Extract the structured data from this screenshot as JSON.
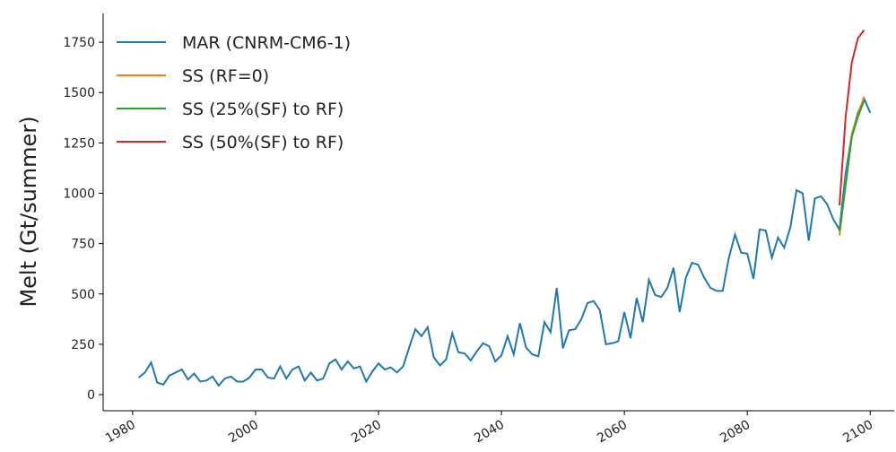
{
  "chart_data": {
    "type": "line",
    "ylabel": "Melt (Gt/summer)",
    "xlim": [
      1975.2,
      2103.9
    ],
    "ylim": [
      -80,
      1893
    ],
    "xticks": [
      1980,
      2000,
      2020,
      2040,
      2060,
      2080,
      2100
    ],
    "yticks": [
      0,
      250,
      500,
      750,
      1000,
      1250,
      1500,
      1750
    ],
    "legend": "upper left",
    "series": [
      {
        "name": "MAR (CNRM-CM6-1)",
        "color": "#1f77b4",
        "x": [
          1981,
          1982,
          1983,
          1984,
          1985,
          1986,
          1987,
          1988,
          1989,
          1990,
          1991,
          1992,
          1993,
          1994,
          1995,
          1996,
          1997,
          1998,
          1999,
          2000,
          2001,
          2002,
          2003,
          2004,
          2005,
          2006,
          2007,
          2008,
          2009,
          2010,
          2011,
          2012,
          2013,
          2014,
          2015,
          2016,
          2017,
          2018,
          2019,
          2020,
          2021,
          2022,
          2023,
          2024,
          2025,
          2026,
          2027,
          2028,
          2029,
          2030,
          2031,
          2032,
          2033,
          2034,
          2035,
          2036,
          2037,
          2038,
          2039,
          2040,
          2041,
          2042,
          2043,
          2044,
          2045,
          2046,
          2047,
          2048,
          2049,
          2050,
          2051,
          2052,
          2053,
          2054,
          2055,
          2056,
          2057,
          2058,
          2059,
          2060,
          2061,
          2062,
          2063,
          2064,
          2065,
          2066,
          2067,
          2068,
          2069,
          2070,
          2071,
          2072,
          2073,
          2074,
          2075,
          2076,
          2077,
          2078,
          2079,
          2080,
          2081,
          2082,
          2083,
          2084,
          2085,
          2086,
          2087,
          2088,
          2089,
          2090,
          2091,
          2092,
          2093,
          2094,
          2095,
          2096,
          2097,
          2098,
          2099,
          2100
        ],
        "values": [
          85,
          110,
          160,
          60,
          50,
          95,
          110,
          125,
          75,
          105,
          65,
          70,
          90,
          45,
          80,
          90,
          65,
          65,
          85,
          125,
          125,
          85,
          80,
          140,
          80,
          125,
          140,
          70,
          110,
          70,
          80,
          155,
          175,
          125,
          165,
          130,
          140,
          65,
          115,
          155,
          125,
          135,
          110,
          140,
          235,
          325,
          290,
          335,
          185,
          145,
          175,
          305,
          210,
          205,
          170,
          215,
          255,
          240,
          165,
          195,
          290,
          200,
          355,
          235,
          200,
          190,
          360,
          310,
          530,
          230,
          320,
          325,
          375,
          455,
          465,
          420,
          250,
          255,
          265,
          410,
          280,
          480,
          360,
          570,
          495,
          485,
          530,
          630,
          410,
          580,
          655,
          645,
          580,
          530,
          515,
          515,
          680,
          795,
          705,
          700,
          575,
          820,
          815,
          680,
          780,
          730,
          830,
          1015,
          1000,
          765,
          975,
          985,
          945,
          870,
          820,
          1100,
          1290,
          1400,
          1470,
          1400
        ]
      },
      {
        "name": "SS (RF=0)",
        "color": "#ff7f0e",
        "x": [
          2095,
          2096,
          2097,
          2098,
          2099
        ],
        "values": [
          790,
          1050,
          1290,
          1390,
          1480
        ]
      },
      {
        "name": "SS (25%(SF) to RF)",
        "color": "#2ca02c",
        "x": [
          2095,
          2096,
          2097,
          2098,
          2099
        ],
        "values": [
          810,
          1040,
          1280,
          1380,
          1460
        ]
      },
      {
        "name": "SS (50%(SF) to RF)",
        "color": "#d62728",
        "x": [
          2095,
          2096,
          2097,
          2098,
          2099
        ],
        "values": [
          940,
          1380,
          1650,
          1770,
          1810
        ]
      }
    ]
  }
}
